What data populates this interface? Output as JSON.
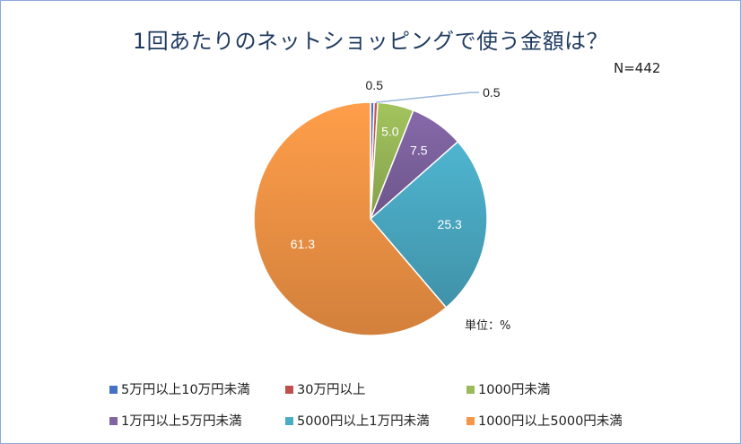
{
  "title": "1回あたりのネットショッピングで使う金額は？",
  "n_label": "N=442",
  "unit_label": "単位：%",
  "chart_data": {
    "type": "pie",
    "title": "1回あたりのネットショッピングで使う金額は？",
    "slices": [
      {
        "name": "5万円以上10万円未満",
        "value": 0.5,
        "label": "0.5",
        "color": "#4472c4"
      },
      {
        "name": "30万円以上",
        "value": 0.5,
        "label": "0.5",
        "color": "#c0504d"
      },
      {
        "name": "1000円未満",
        "value": 5.0,
        "label": "5.0",
        "color": "#9bbb59"
      },
      {
        "name": "1万円以上5万円未満",
        "value": 7.5,
        "label": "7.5",
        "color": "#8064a2"
      },
      {
        "name": "5000円以上1万円未満",
        "value": 25.3,
        "label": "25.3",
        "color": "#4bacc6"
      },
      {
        "name": "1000円以上5000円未満",
        "value": 61.3,
        "label": "61.3",
        "color": "#f79646"
      }
    ],
    "legend_position": "bottom"
  }
}
